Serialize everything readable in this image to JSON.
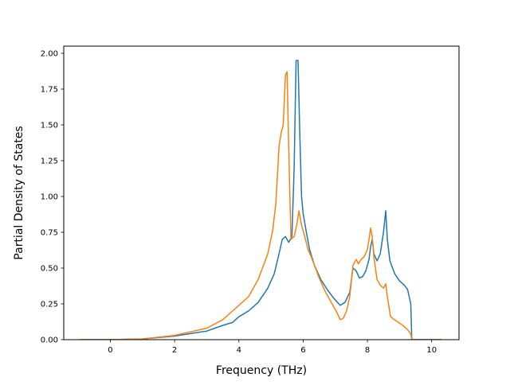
{
  "chart_data": {
    "type": "line",
    "title": "",
    "xlabel": "Frequency (THz)",
    "ylabel": "Partial Density of States",
    "xlim": [
      -1.45,
      10.85
    ],
    "ylim": [
      0.0,
      2.05
    ],
    "xticks": [
      0,
      2,
      4,
      6,
      8,
      10
    ],
    "xtick_labels": [
      "0",
      "2",
      "4",
      "6",
      "8",
      "10"
    ],
    "yticks": [
      0.0,
      0.25,
      0.5,
      0.75,
      1.0,
      1.25,
      1.5,
      1.75,
      2.0
    ],
    "ytick_labels": [
      "0.00",
      "0.25",
      "0.50",
      "0.75",
      "1.00",
      "1.25",
      "1.50",
      "1.75",
      "2.00"
    ],
    "grid": false,
    "legend": "none",
    "series": [
      {
        "color": "#1f77b4",
        "x": [
          -0.95,
          0.0,
          1.0,
          2.0,
          3.0,
          3.5,
          3.8,
          4.0,
          4.3,
          4.6,
          4.9,
          5.1,
          5.25,
          5.35,
          5.45,
          5.55,
          5.65,
          5.72,
          5.78,
          5.84,
          5.9,
          5.95,
          6.0,
          6.1,
          6.2,
          6.35,
          6.55,
          6.75,
          6.95,
          7.15,
          7.3,
          7.45,
          7.55,
          7.65,
          7.75,
          7.85,
          7.95,
          8.05,
          8.1,
          8.15,
          8.2,
          8.3,
          8.4,
          8.5,
          8.57,
          8.62,
          8.7,
          8.85,
          9.0,
          9.15,
          9.25,
          9.35,
          9.38,
          9.6,
          10.3
        ],
        "y": [
          0.0,
          0.0,
          0.005,
          0.025,
          0.06,
          0.1,
          0.12,
          0.16,
          0.2,
          0.26,
          0.36,
          0.46,
          0.6,
          0.7,
          0.72,
          0.68,
          0.72,
          1.2,
          1.95,
          1.95,
          1.4,
          1.0,
          0.88,
          0.75,
          0.63,
          0.52,
          0.42,
          0.35,
          0.29,
          0.24,
          0.26,
          0.33,
          0.5,
          0.48,
          0.43,
          0.44,
          0.48,
          0.56,
          0.65,
          0.7,
          0.6,
          0.55,
          0.6,
          0.75,
          0.9,
          0.7,
          0.55,
          0.46,
          0.41,
          0.38,
          0.35,
          0.25,
          0.0,
          0.0,
          0.0
        ]
      },
      {
        "color": "#ff7f0e",
        "x": [
          -0.95,
          0.0,
          1.0,
          2.0,
          3.0,
          3.5,
          3.8,
          4.0,
          4.3,
          4.6,
          4.9,
          5.05,
          5.15,
          5.25,
          5.32,
          5.38,
          5.45,
          5.5,
          5.55,
          5.62,
          5.72,
          5.8,
          5.87,
          5.95,
          6.05,
          6.15,
          6.25,
          6.35,
          6.5,
          6.7,
          6.9,
          7.05,
          7.15,
          7.25,
          7.35,
          7.45,
          7.55,
          7.65,
          7.72,
          7.8,
          7.9,
          8.0,
          8.05,
          8.1,
          8.15,
          8.2,
          8.3,
          8.4,
          8.5,
          8.57,
          8.62,
          8.72,
          8.9,
          9.1,
          9.25,
          9.35,
          9.38,
          9.6,
          10.3
        ],
        "y": [
          0.0,
          0.0,
          0.005,
          0.03,
          0.08,
          0.14,
          0.2,
          0.24,
          0.3,
          0.42,
          0.6,
          0.76,
          0.95,
          1.35,
          1.45,
          1.5,
          1.85,
          1.87,
          1.35,
          0.7,
          0.72,
          0.8,
          0.9,
          0.8,
          0.72,
          0.63,
          0.58,
          0.52,
          0.43,
          0.33,
          0.25,
          0.19,
          0.14,
          0.15,
          0.2,
          0.3,
          0.52,
          0.56,
          0.53,
          0.56,
          0.58,
          0.63,
          0.7,
          0.78,
          0.72,
          0.58,
          0.42,
          0.38,
          0.36,
          0.39,
          0.3,
          0.16,
          0.13,
          0.1,
          0.07,
          0.04,
          0.0,
          0.0,
          0.0
        ]
      }
    ]
  }
}
